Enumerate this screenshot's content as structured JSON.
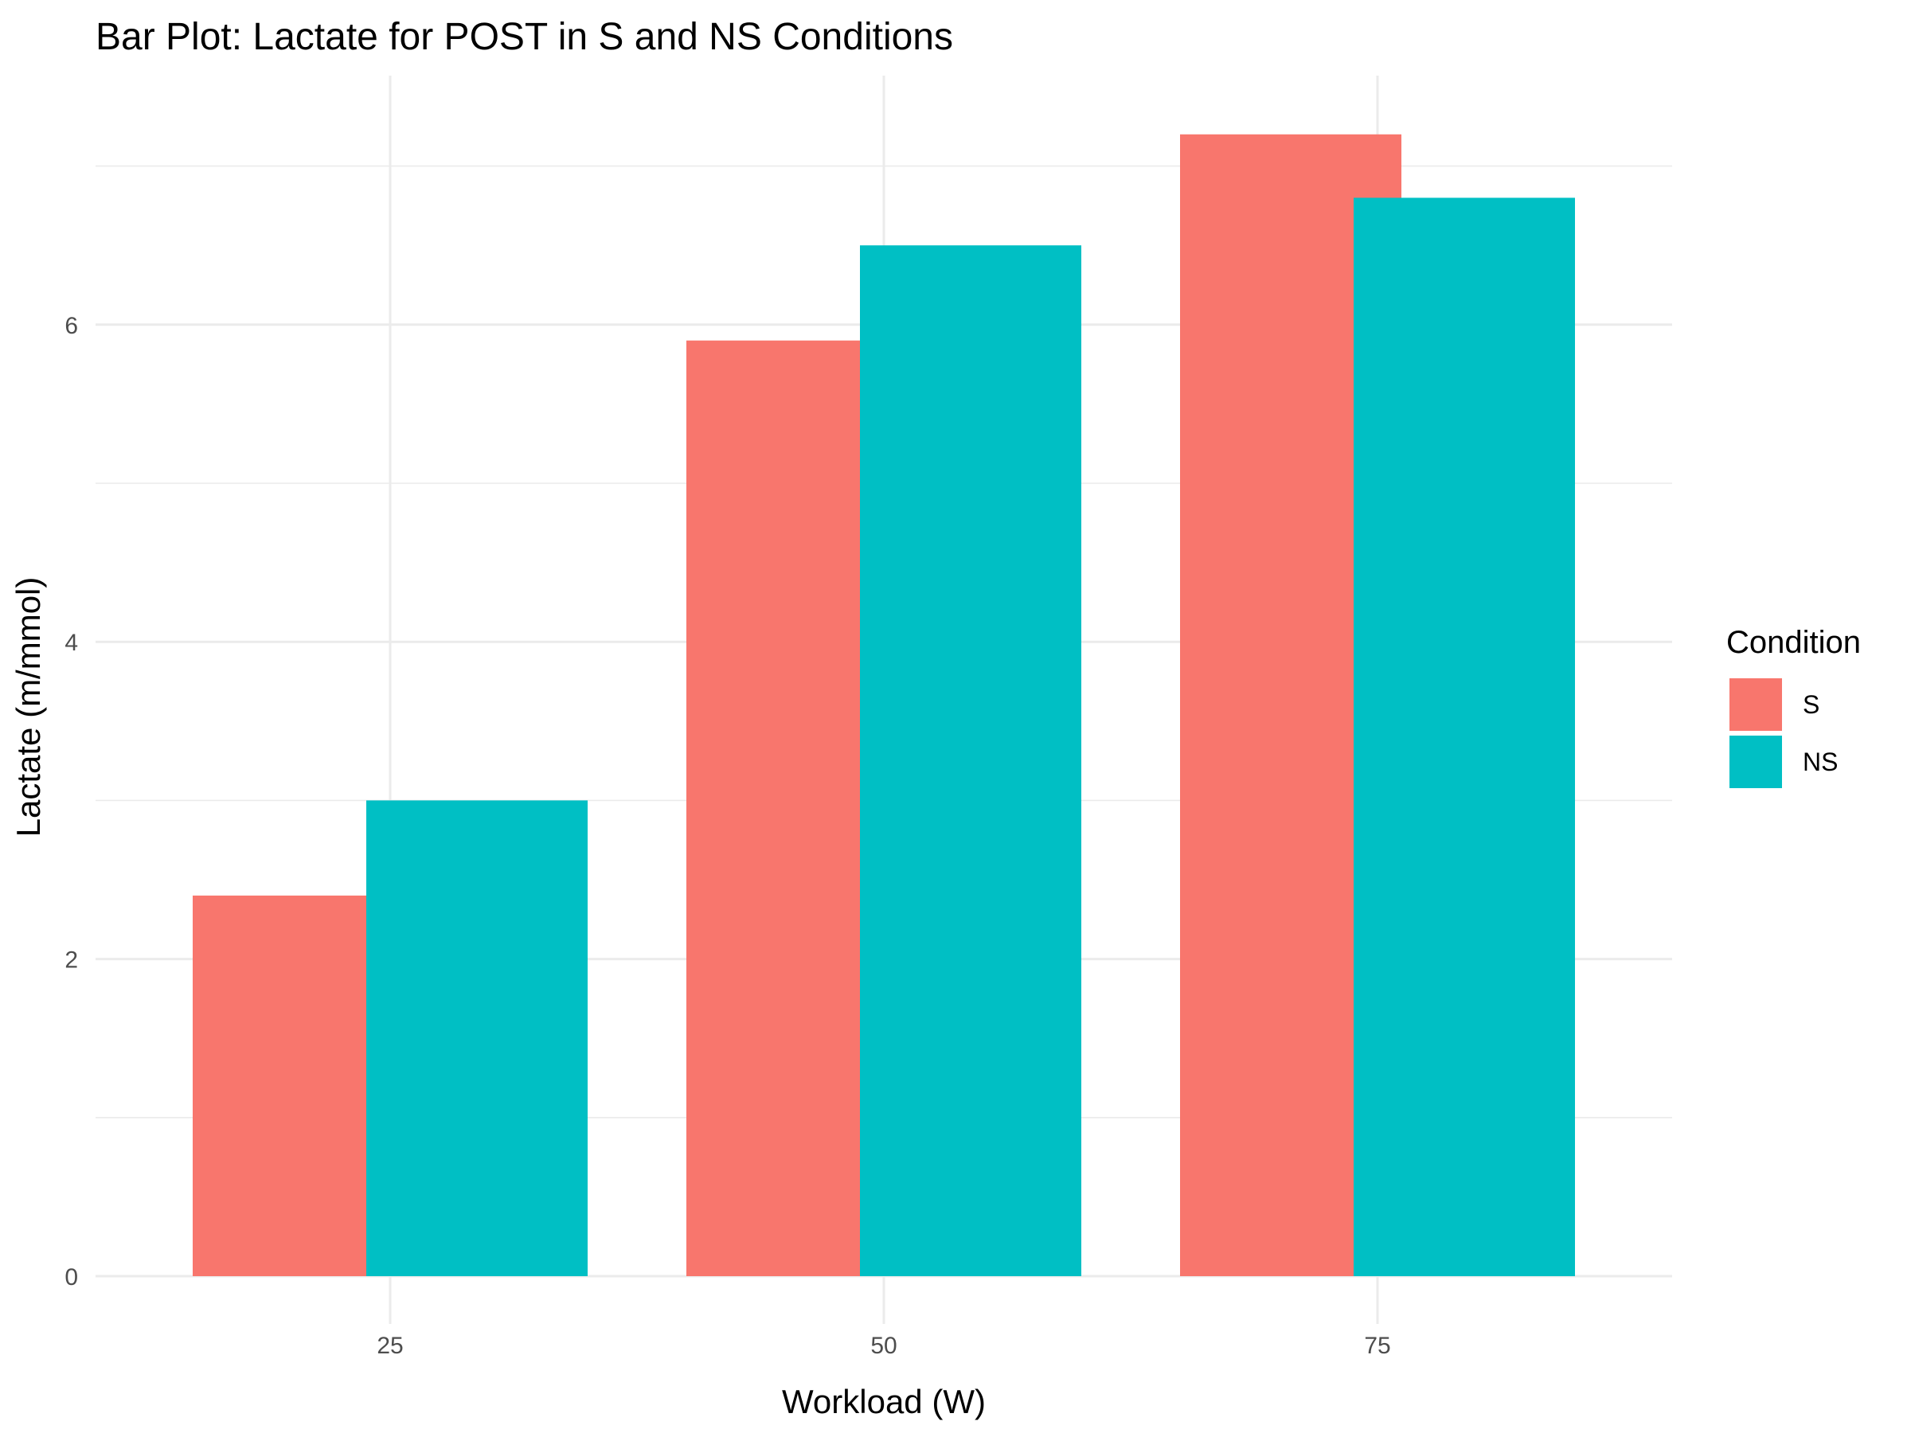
{
  "chart_data": {
    "type": "bar",
    "title": "Bar Plot: Lactate for POST in S and NS Conditions",
    "xlabel": "Workload (W)",
    "ylabel": "Lactate (m/mmol)",
    "categories": [
      "25",
      "50",
      "75"
    ],
    "series": [
      {
        "name": "S",
        "color": "#F8766D",
        "values": [
          2.4,
          5.9,
          7.2
        ]
      },
      {
        "name": "NS",
        "color": "#00BFC4",
        "values": [
          3.0,
          6.5,
          6.8
        ]
      }
    ],
    "yticks": [
      "0",
      "2",
      "4",
      "6"
    ],
    "ytick_values": [
      0,
      2,
      4,
      6
    ],
    "ylim": [
      0,
      7.4
    ],
    "grid": true,
    "legend": {
      "title": "Condition",
      "placement": "right"
    }
  }
}
